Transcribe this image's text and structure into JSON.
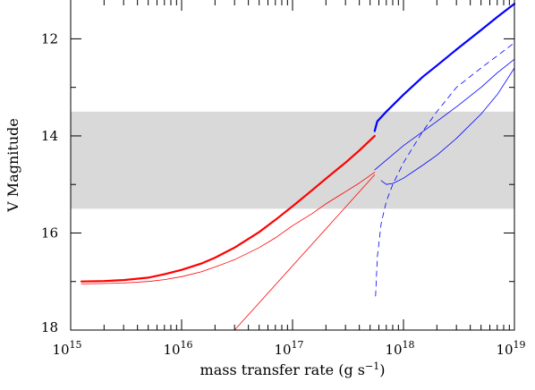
{
  "chart_data": {
    "type": "line",
    "xlabel": "mass transfer rate (g s",
    "xlabel_sup": "−1",
    "xlabel_end": ")",
    "ylabel": "V Magnitude",
    "x_scale": "log",
    "xlim": [
      1000000000000000.0,
      1e+19
    ],
    "ylim": [
      18,
      11.2
    ],
    "y_inverted": true,
    "x_ticks": [
      {
        "base": "10",
        "exp": "15",
        "value": 1000000000000000.0
      },
      {
        "base": "10",
        "exp": "16",
        "value": 1e+16
      },
      {
        "base": "10",
        "exp": "17",
        "value": 1e+17
      },
      {
        "base": "10",
        "exp": "18",
        "value": 1e+18
      },
      {
        "base": "10",
        "exp": "19",
        "value": 1e+19
      }
    ],
    "y_ticks": [
      {
        "label": "12",
        "value": 12
      },
      {
        "label": "14",
        "value": 14
      },
      {
        "label": "16",
        "value": 16
      },
      {
        "label": "18",
        "value": 18
      }
    ],
    "band": {
      "y_from": 13.5,
      "y_to": 15.5,
      "color": "#d9d9d9"
    },
    "series": [
      {
        "color": "#ff0000",
        "width": 2.2,
        "dash": false,
        "points": [
          [
            1250000000000000.0,
            17.0
          ],
          [
            2000000000000000.0,
            16.99
          ],
          [
            3000000000000000.0,
            16.97
          ],
          [
            5000000000000000.0,
            16.92
          ],
          [
            7000000000000000.0,
            16.85
          ],
          [
            1e+16,
            16.76
          ],
          [
            1.5e+16,
            16.63
          ],
          [
            2e+16,
            16.51
          ],
          [
            3e+16,
            16.3
          ],
          [
            5e+16,
            15.98
          ],
          [
            7e+16,
            15.73
          ],
          [
            1e+17,
            15.45
          ],
          [
            1.5e+17,
            15.12
          ],
          [
            2e+17,
            14.88
          ],
          [
            3e+17,
            14.55
          ],
          [
            4e+17,
            14.3
          ],
          [
            5.5e+17,
            14.0
          ]
        ]
      },
      {
        "color": "#ff0000",
        "width": 0.8,
        "dash": false,
        "points": [
          [
            1250000000000000.0,
            17.05
          ],
          [
            2000000000000000.0,
            17.04
          ],
          [
            3000000000000000.0,
            17.03
          ],
          [
            5000000000000000.0,
            17.0
          ],
          [
            7000000000000000.0,
            16.96
          ],
          [
            1e+16,
            16.9
          ],
          [
            1.5e+16,
            16.8
          ],
          [
            2e+16,
            16.7
          ],
          [
            3e+16,
            16.55
          ],
          [
            5e+16,
            16.3
          ],
          [
            7e+16,
            16.1
          ],
          [
            1e+17,
            15.85
          ],
          [
            1.5e+17,
            15.6
          ],
          [
            2e+17,
            15.4
          ],
          [
            3e+17,
            15.15
          ],
          [
            4e+17,
            14.97
          ],
          [
            5.5e+17,
            14.75
          ]
        ]
      },
      {
        "color": "#ff0000",
        "width": 0.8,
        "dash": false,
        "points": [
          [
            3e+16,
            18.0
          ],
          [
            5.5e+17,
            14.8
          ]
        ]
      },
      {
        "color": "#0000ff",
        "width": 2.2,
        "dash": false,
        "points": [
          [
            5.5e+17,
            13.9
          ],
          [
            5.8e+17,
            13.7
          ],
          [
            7e+17,
            13.5
          ],
          [
            1e+18,
            13.15
          ],
          [
            1.5e+18,
            12.78
          ],
          [
            2e+18,
            12.55
          ],
          [
            3e+18,
            12.22
          ],
          [
            5e+18,
            11.82
          ],
          [
            7e+18,
            11.55
          ],
          [
            1e+19,
            11.28
          ]
        ]
      },
      {
        "color": "#0000ff",
        "width": 0.8,
        "dash": false,
        "points": [
          [
            5.5e+17,
            14.7
          ],
          [
            1e+18,
            14.2
          ],
          [
            2e+18,
            13.7
          ],
          [
            3e+18,
            13.4
          ],
          [
            5e+18,
            13.0
          ],
          [
            7e+18,
            12.7
          ],
          [
            1e+19,
            12.42
          ]
        ]
      },
      {
        "color": "#0000ff",
        "width": 0.8,
        "dash": false,
        "points": [
          [
            6.3e+17,
            14.92
          ],
          [
            7e+17,
            15.0
          ],
          [
            8e+17,
            14.98
          ],
          [
            1e+18,
            14.87
          ],
          [
            1.5e+18,
            14.6
          ],
          [
            2e+18,
            14.4
          ],
          [
            3e+18,
            14.05
          ],
          [
            5e+18,
            13.55
          ],
          [
            7e+18,
            13.15
          ],
          [
            1e+19,
            12.6
          ]
        ]
      },
      {
        "color": "#0000ff",
        "width": 0.8,
        "dash": true,
        "points": [
          [
            5.6e+17,
            17.3
          ],
          [
            5.8e+17,
            16.5
          ],
          [
            6.3e+17,
            15.8
          ],
          [
            7e+17,
            15.35
          ],
          [
            8e+17,
            15.0
          ],
          [
            1e+18,
            14.55
          ],
          [
            1.5e+18,
            13.9
          ],
          [
            2e+18,
            13.5
          ],
          [
            3e+18,
            13.0
          ],
          [
            5e+18,
            12.6
          ],
          [
            7e+18,
            12.35
          ],
          [
            1e+19,
            12.08
          ]
        ]
      }
    ]
  }
}
